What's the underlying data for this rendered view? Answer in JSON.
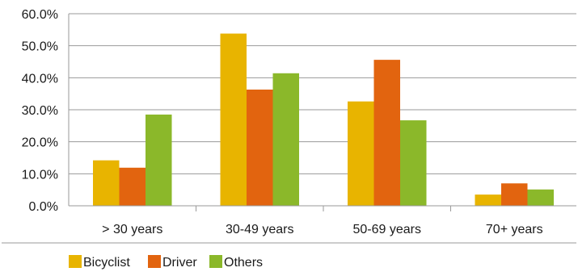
{
  "chart_data": {
    "type": "bar",
    "title": "",
    "xlabel": "",
    "ylabel": "",
    "categories": [
      "> 30 years",
      "30-49 years",
      "50-69 years",
      "70+ years"
    ],
    "series": [
      {
        "name": "Bicyclist",
        "color": "#E8B400",
        "values": [
          14.2,
          53.8,
          32.6,
          3.5
        ]
      },
      {
        "name": "Driver",
        "color": "#E2640F",
        "values": [
          11.9,
          36.3,
          45.6,
          7.0
        ]
      },
      {
        "name": "Others",
        "color": "#8BB82A",
        "values": [
          28.5,
          41.4,
          26.7,
          5.1
        ]
      }
    ],
    "ylim": [
      0,
      60
    ],
    "yticks": [
      "0.0%",
      "10.0%",
      "20.0%",
      "30.0%",
      "40.0%",
      "50.0%",
      "60.0%"
    ],
    "grid": true,
    "legend_position": "bottom-left"
  }
}
